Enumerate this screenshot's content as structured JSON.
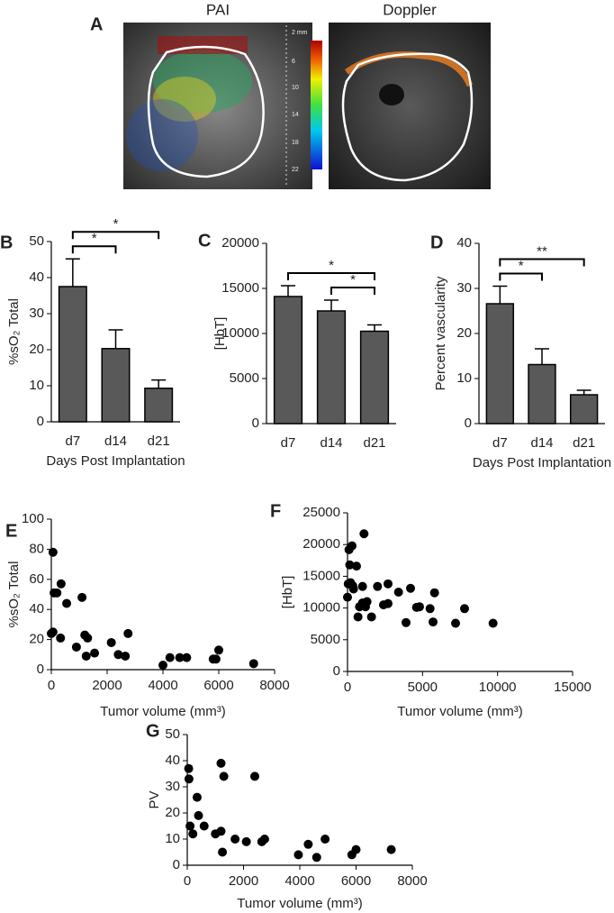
{
  "figure_a": {
    "label": "A",
    "titles": [
      "PAI",
      "Doppler"
    ],
    "scale_labels": [
      "2 mm",
      "6",
      "10",
      "14",
      "18",
      "22"
    ]
  },
  "chart_data": [
    {
      "type": "bar",
      "label": "B",
      "categories": [
        "d7",
        "d14",
        "d21"
      ],
      "values": [
        37.5,
        20.3,
        9.3
      ],
      "errors": [
        7.7,
        5.2,
        2.3
      ],
      "color": "#595959",
      "ylim": [
        0,
        50
      ],
      "yticks": [
        0,
        10,
        20,
        30,
        40,
        50
      ],
      "ylabel": "%sO₂ Total",
      "xlabel": "Days Post Implantation",
      "annotations": [
        {
          "text": "*",
          "between": [
            "d7",
            "d14"
          ]
        },
        {
          "text": "*",
          "between": [
            "d7",
            "d21"
          ]
        }
      ]
    },
    {
      "type": "bar",
      "label": "C",
      "categories": [
        "d7",
        "d14",
        "d21"
      ],
      "values": [
        14100,
        12500,
        10250
      ],
      "errors": [
        1200,
        1200,
        700
      ],
      "color": "#595959",
      "ylim": [
        0,
        20000
      ],
      "yticks": [
        0,
        5000,
        10000,
        15000,
        20000
      ],
      "ylabel": "[HbT]",
      "annotations": [
        {
          "text": "*",
          "between": [
            "d14",
            "d21"
          ]
        },
        {
          "text": "*",
          "between": [
            "d7",
            "d21"
          ]
        }
      ]
    },
    {
      "type": "bar",
      "label": "D",
      "categories": [
        "d7",
        "d14",
        "d21"
      ],
      "values": [
        26.6,
        13.1,
        6.4
      ],
      "errors": [
        3.9,
        3.5,
        1.0
      ],
      "color": "#595959",
      "ylim": [
        0,
        40
      ],
      "yticks": [
        0,
        10,
        20,
        30,
        40
      ],
      "ylabel": "Percent vascularity",
      "xlabel": "Days Post Implantation",
      "annotations": [
        {
          "text": "*",
          "between": [
            "d7",
            "d14"
          ]
        },
        {
          "text": "**",
          "between": [
            "d7",
            "d21"
          ]
        }
      ]
    },
    {
      "type": "scatter",
      "label": "E",
      "color": "#000000",
      "xlabel": "Tumor volume (mm³)",
      "ylabel": "%sO₂ Total",
      "xlim": [
        0,
        8000
      ],
      "xticks": [
        0,
        2000,
        4000,
        6000,
        8000
      ],
      "ylim": [
        0,
        100
      ],
      "yticks": [
        0,
        20,
        40,
        60,
        80,
        100
      ],
      "x": [
        60,
        100,
        200,
        0,
        60,
        330,
        350,
        550,
        900,
        1100,
        1200,
        1250,
        1300,
        1550,
        2150,
        2400,
        2650,
        2750,
        4000,
        4250,
        4600,
        4850,
        5800,
        5900,
        6000,
        7250
      ],
      "y": [
        78,
        51,
        51,
        24,
        25,
        21,
        57,
        44,
        15,
        48,
        23,
        9,
        21,
        11,
        18,
        10,
        9,
        24,
        3,
        8,
        8,
        8,
        7,
        7,
        13,
        4
      ]
    },
    {
      "type": "scatter",
      "label": "F",
      "color": "#000000",
      "xlabel": "Tumor volume (mm³)",
      "ylabel": "[HbT]",
      "xlim": [
        0,
        15000
      ],
      "xticks": [
        0,
        5000,
        10000,
        15000
      ],
      "ylim": [
        0,
        25000
      ],
      "yticks": [
        0,
        5000,
        10000,
        15000,
        20000,
        25000
      ],
      "x": [
        0,
        50,
        100,
        150,
        200,
        300,
        350,
        400,
        600,
        700,
        800,
        1000,
        1000,
        1100,
        1200,
        1300,
        1600,
        2000,
        2400,
        2700,
        2700,
        3400,
        3900,
        4200,
        4600,
        4800,
        5500,
        5700,
        5800,
        7200,
        7800,
        9700
      ],
      "y": [
        11700,
        13800,
        19200,
        16800,
        14000,
        19800,
        13500,
        13000,
        16600,
        8600,
        10200,
        13400,
        10800,
        21700,
        10200,
        11000,
        8600,
        13400,
        10500,
        13800,
        10700,
        12500,
        7700,
        13100,
        10100,
        10200,
        9900,
        7800,
        12400,
        7600,
        9900,
        7600
      ]
    },
    {
      "type": "scatter",
      "label": "G",
      "color": "#000000",
      "xlabel": "Tumor volume (mm³)",
      "ylabel": "PV",
      "xlim": [
        0,
        8000
      ],
      "xticks": [
        0,
        2000,
        4000,
        6000,
        8000
      ],
      "ylim": [
        0,
        50
      ],
      "yticks": [
        0,
        10,
        20,
        30,
        40,
        50
      ],
      "x": [
        50,
        60,
        100,
        200,
        350,
        400,
        600,
        1000,
        1200,
        1200,
        1250,
        1300,
        1700,
        2100,
        2400,
        2650,
        2750,
        3950,
        4300,
        4600,
        4900,
        5850,
        6000,
        7250
      ],
      "y": [
        37,
        33,
        15,
        12,
        26,
        19,
        15,
        12,
        39,
        13,
        5,
        34,
        10,
        9,
        34,
        9,
        10,
        4,
        8,
        3,
        10,
        4,
        6,
        6
      ]
    }
  ]
}
